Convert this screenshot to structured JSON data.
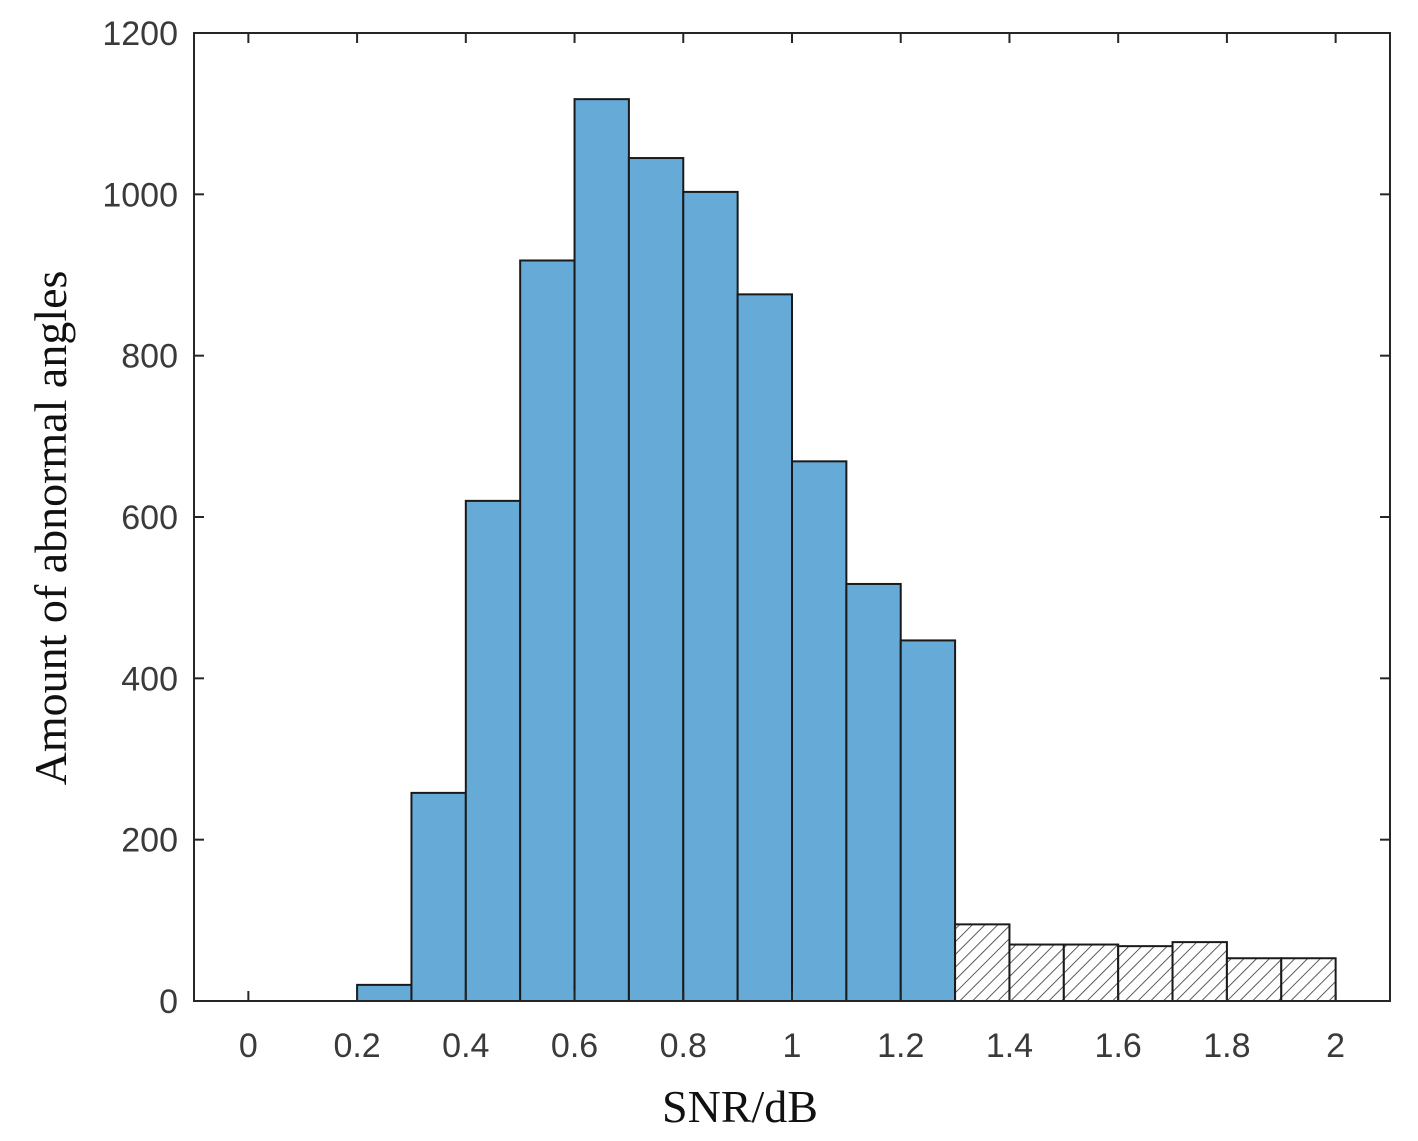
{
  "chart_data": {
    "type": "bar",
    "title": "",
    "xlabel": "SNR/dB",
    "ylabel": "Amount of abnormal angles",
    "xlim": [
      -0.1,
      2.1
    ],
    "ylim": [
      0,
      1200
    ],
    "x_ticks": [
      "0",
      "0.2",
      "0.4",
      "0.6",
      "0.8",
      "1",
      "1.2",
      "1.4",
      "1.6",
      "1.8",
      "2"
    ],
    "y_ticks": [
      "0",
      "200",
      "400",
      "600",
      "800",
      "1000",
      "1200"
    ],
    "grid": false,
    "bin_width": 0.1,
    "series": [
      {
        "style": "solid",
        "color": "#66aad8",
        "bins": [
          {
            "x0": 0.2,
            "x1": 0.3,
            "value": 20
          },
          {
            "x0": 0.3,
            "x1": 0.4,
            "value": 258
          },
          {
            "x0": 0.4,
            "x1": 0.5,
            "value": 620
          },
          {
            "x0": 0.5,
            "x1": 0.6,
            "value": 918
          },
          {
            "x0": 0.6,
            "x1": 0.7,
            "value": 1118
          },
          {
            "x0": 0.7,
            "x1": 0.8,
            "value": 1045
          },
          {
            "x0": 0.8,
            "x1": 0.9,
            "value": 1003
          },
          {
            "x0": 0.9,
            "x1": 1.0,
            "value": 876
          },
          {
            "x0": 1.0,
            "x1": 1.1,
            "value": 669
          },
          {
            "x0": 1.1,
            "x1": 1.2,
            "value": 517
          },
          {
            "x0": 1.2,
            "x1": 1.3,
            "value": 447
          }
        ]
      },
      {
        "style": "hatched",
        "color": "#ffffff",
        "bins": [
          {
            "x0": 1.3,
            "x1": 1.4,
            "value": 95
          },
          {
            "x0": 1.4,
            "x1": 1.5,
            "value": 70
          },
          {
            "x0": 1.5,
            "x1": 1.6,
            "value": 70
          },
          {
            "x0": 1.6,
            "x1": 1.7,
            "value": 68
          },
          {
            "x0": 1.7,
            "x1": 1.8,
            "value": 73
          },
          {
            "x0": 1.8,
            "x1": 1.9,
            "value": 53
          },
          {
            "x0": 1.9,
            "x1": 2.0,
            "value": 53
          }
        ]
      }
    ]
  }
}
